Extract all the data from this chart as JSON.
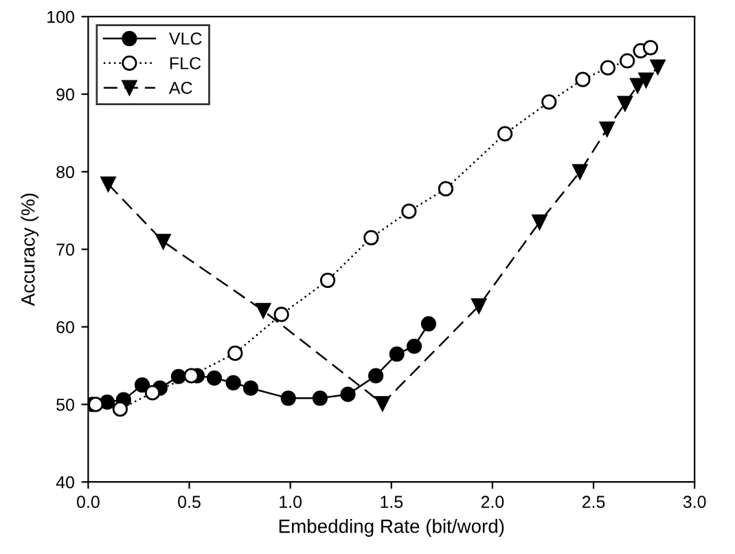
{
  "chart_data": {
    "type": "line",
    "xlabel": "Embedding Rate (bit/word)",
    "ylabel": "Accuracy (%)",
    "xlim": [
      0,
      3.0
    ],
    "ylim": [
      40,
      100
    ],
    "xticks": [
      {
        "value": 0,
        "label": "0.0"
      },
      0.5,
      {
        "value": 1,
        "label": "1.0"
      },
      1.5,
      {
        "value": 2,
        "label": "2.0"
      },
      2.5,
      {
        "value": 3,
        "label": "3.0"
      }
    ],
    "yticks": [
      40,
      50,
      60,
      70,
      80,
      90,
      100
    ],
    "grid": false,
    "legend": "top left",
    "series": [
      {
        "name": "VLC",
        "color": "#000000",
        "marker": "circle",
        "line_style": "solid",
        "x": [
          0.02,
          0.094,
          0.175,
          0.267,
          0.355,
          0.447,
          0.539,
          0.624,
          0.718,
          0.804,
          0.99,
          1.147,
          1.285,
          1.423,
          1.527,
          1.613,
          1.684
        ],
        "values": [
          50.0,
          50.3,
          50.6,
          52.5,
          52.1,
          53.6,
          53.7,
          53.4,
          52.8,
          52.1,
          50.8,
          50.8,
          51.3,
          53.7,
          56.5,
          57.5,
          60.4
        ]
      },
      {
        "name": "FLC",
        "color": "#000000",
        "marker": "circle",
        "line_style": "dotted",
        "x": [
          0.037,
          0.158,
          0.318,
          0.51,
          0.727,
          0.956,
          1.185,
          1.4,
          1.587,
          1.769,
          2.062,
          2.28,
          2.447,
          2.571,
          2.667,
          2.733,
          2.782
        ],
        "values": [
          50.0,
          49.4,
          51.5,
          53.7,
          56.6,
          61.6,
          66.0,
          71.5,
          74.9,
          77.8,
          84.9,
          89.0,
          91.9,
          93.4,
          94.3,
          95.6,
          96.0
        ]
      },
      {
        "name": "AC",
        "color": "#000000",
        "marker": "triangle",
        "line_style": "dashed",
        "x": [
          0.099,
          0.371,
          0.866,
          1.456,
          1.933,
          2.233,
          2.433,
          2.567,
          2.656,
          2.718,
          2.76,
          2.818
        ],
        "values": [
          78.4,
          71.0,
          62.1,
          50.1,
          62.7,
          73.5,
          80.0,
          85.5,
          88.8,
          91.1,
          91.8,
          93.5
        ]
      }
    ]
  }
}
